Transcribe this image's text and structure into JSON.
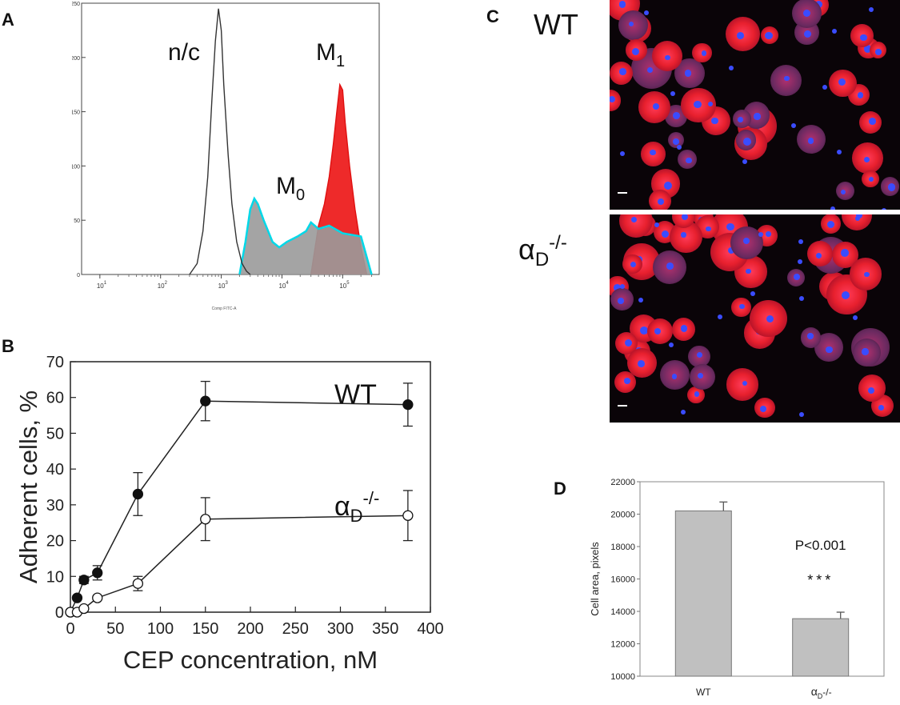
{
  "panels": {
    "a": "A",
    "b": "B",
    "c": "C",
    "d": "D"
  },
  "panel_c": {
    "wt_label": "WT",
    "ko_label_base": "α",
    "ko_label_sub": "D",
    "ko_label_sup": "-/-"
  },
  "chart_data": [
    {
      "id": "A",
      "type": "area",
      "title": "",
      "xscale": "log",
      "xlim": [
        5,
        400000
      ],
      "ylim": [
        0,
        250
      ],
      "xticks": [
        "10^1",
        "10^2",
        "10^3",
        "10^4",
        "10^5"
      ],
      "yticks": [
        0,
        50,
        100,
        150,
        200,
        250
      ],
      "xlabel": "Comp FITC-A",
      "labels": {
        "nc": "n/c",
        "m0_base": "M",
        "m0_sub": "0",
        "m1_base": "M",
        "m1_sub": "1"
      },
      "series": [
        {
          "name": "n/c",
          "color": "#333333",
          "fill": "none",
          "x": [
            300,
            400,
            500,
            600,
            700,
            800,
            900,
            1000,
            1100,
            1300,
            1500,
            1800,
            2200,
            2600,
            3000
          ],
          "y": [
            0,
            10,
            40,
            90,
            160,
            215,
            245,
            225,
            175,
            110,
            65,
            30,
            10,
            3,
            0
          ]
        },
        {
          "name": "M0",
          "color": "#00d8e8",
          "fill": "#9a9a9a",
          "x": [
            2000,
            2500,
            3000,
            3500,
            4000,
            5000,
            7000,
            9000,
            12000,
            18000,
            25000,
            30000,
            40000,
            60000,
            100000,
            200000,
            300000
          ],
          "y": [
            0,
            30,
            60,
            70,
            65,
            50,
            30,
            25,
            30,
            35,
            40,
            48,
            42,
            45,
            38,
            35,
            0
          ]
        },
        {
          "name": "M1",
          "color": "#e01010",
          "fill": "#ee2a2a",
          "x": [
            30000,
            40000,
            50000,
            60000,
            70000,
            80000,
            90000,
            100000,
            110000,
            130000,
            160000,
            200000,
            250000
          ],
          "y": [
            0,
            45,
            65,
            90,
            120,
            150,
            175,
            170,
            140,
            100,
            60,
            25,
            0
          ]
        }
      ]
    },
    {
      "id": "B",
      "type": "line",
      "title": "",
      "xlabel": "CEP concentration, nM",
      "ylabel": "Adherent cells, %",
      "xlim": [
        0,
        400
      ],
      "ylim": [
        0,
        70
      ],
      "xticks": [
        0,
        50,
        100,
        150,
        200,
        250,
        300,
        350,
        400
      ],
      "yticks": [
        0,
        10,
        20,
        30,
        40,
        50,
        60,
        70
      ],
      "series": [
        {
          "name": "WT",
          "marker": "filled",
          "label": "WT",
          "x": [
            0,
            7.5,
            15,
            30,
            75,
            150,
            375
          ],
          "y": [
            0,
            4,
            9,
            11,
            33,
            59,
            58
          ],
          "err": [
            0,
            0.5,
            1,
            2,
            6,
            5.5,
            6
          ]
        },
        {
          "name": "αD-/-",
          "marker": "open",
          "label_base": "α",
          "label_sub": "D",
          "label_sup": "-/-",
          "x": [
            0,
            7.5,
            15,
            30,
            75,
            150,
            375
          ],
          "y": [
            0,
            0,
            1,
            4,
            8,
            26,
            27
          ],
          "err": [
            0,
            0,
            0.5,
            0.5,
            2,
            6,
            7
          ]
        }
      ]
    },
    {
      "id": "D",
      "type": "bar",
      "title": "",
      "ylabel": "Cell area, pixels",
      "categories": [
        "WT",
        "αD-/-"
      ],
      "category_labels": {
        "wt": "WT",
        "ko_base": "α",
        "ko_sub": "D",
        "ko_rest": "-/-"
      },
      "values": [
        20200,
        13550
      ],
      "err": [
        550,
        400
      ],
      "ylim": [
        10000,
        22000
      ],
      "yticks": [
        10000,
        12000,
        14000,
        16000,
        18000,
        20000,
        22000
      ],
      "annotation": "P<0.001",
      "stars": "***",
      "bar_color": "#c0c0c0"
    }
  ]
}
